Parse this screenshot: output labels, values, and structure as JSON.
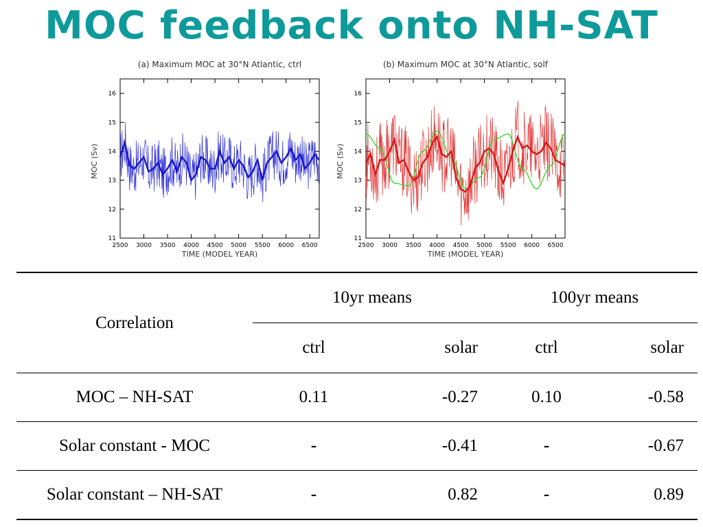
{
  "slide": {
    "title": "MOC feedback onto NH-SAT"
  },
  "chart_data": [
    {
      "type": "line",
      "title": "(a) Maximum MOC at 30°N Atlantic, ctrl",
      "xlabel": "TIME (MODEL YEAR)",
      "ylabel": "MOC (Sv)",
      "xlim": [
        2500,
        6700
      ],
      "ylim": [
        11,
        16.5
      ],
      "xticks": [
        2500,
        3000,
        3500,
        4000,
        4500,
        5000,
        5500,
        6000,
        6500
      ],
      "yticks": [
        11,
        12,
        13,
        14,
        15,
        16
      ],
      "colors": {
        "annual": "#2b2bd6",
        "smooth": "#1515c8"
      },
      "series": [
        {
          "x": [
            2500,
            2600,
            2700,
            2800,
            2900,
            3000,
            3100,
            3200,
            3300,
            3400,
            3500,
            3600,
            3700,
            3800,
            3900,
            4000,
            4100,
            4200,
            4300,
            4400,
            4500,
            4600,
            4700,
            4800,
            4900,
            5000,
            5100,
            5200,
            5300,
            5400,
            5500,
            5600,
            5700,
            5800,
            5900,
            6000,
            6100,
            6200,
            6300,
            6400,
            6500,
            6600,
            6700
          ],
          "values": [
            13.8,
            14.3,
            13.5,
            13.4,
            13.6,
            13.8,
            13.3,
            13.4,
            13.6,
            13.2,
            13.4,
            13.7,
            13.3,
            13.8,
            13.6,
            13.0,
            13.2,
            13.8,
            13.7,
            13.4,
            13.4,
            14.0,
            13.6,
            13.8,
            13.4,
            13.7,
            13.5,
            13.1,
            13.3,
            13.7,
            13.0,
            13.6,
            13.8,
            14.0,
            13.6,
            13.8,
            14.1,
            13.7,
            13.9,
            13.4,
            13.6,
            13.9,
            13.7
          ]
        }
      ]
    },
    {
      "type": "line",
      "title": "(b) Maximum MOC at 30°N Atlantic, solf",
      "xlabel": "TIME (MODEL YEAR)",
      "ylabel": "MOC (Sv)",
      "xlim": [
        2500,
        6700
      ],
      "ylim": [
        11,
        16.5
      ],
      "xticks": [
        2500,
        3000,
        3500,
        4000,
        4500,
        5000,
        5500,
        6000,
        6500
      ],
      "yticks": [
        11,
        12,
        13,
        14,
        15,
        16
      ],
      "colors": {
        "annual": "#e23030",
        "smooth": "#d41616",
        "solar": "#33dd33"
      },
      "series": [
        {
          "x": [
            2500,
            2600,
            2700,
            2800,
            2900,
            3000,
            3100,
            3200,
            3300,
            3400,
            3500,
            3600,
            3700,
            3800,
            3900,
            4000,
            4100,
            4200,
            4300,
            4400,
            4500,
            4600,
            4700,
            4800,
            4900,
            5000,
            5100,
            5200,
            5300,
            5400,
            5500,
            5600,
            5700,
            5800,
            5900,
            6000,
            6100,
            6200,
            6300,
            6400,
            6500,
            6600,
            6700
          ],
          "values": [
            13.6,
            13.9,
            13.2,
            13.7,
            13.7,
            14.0,
            14.4,
            13.6,
            13.7,
            13.3,
            13.0,
            13.1,
            13.6,
            13.8,
            14.3,
            14.5,
            13.9,
            13.8,
            14.0,
            13.1,
            12.7,
            12.6,
            12.8,
            13.4,
            13.6,
            14.0,
            14.1,
            13.9,
            13.3,
            12.9,
            13.4,
            14.0,
            14.5,
            14.1,
            14.2,
            14.0,
            13.9,
            14.0,
            14.3,
            14.1,
            13.7,
            13.6,
            13.5
          ]
        },
        {
          "solar_forcing": {
            "x": [
              2500,
              2800,
              3100,
              3400,
              3700,
              4000,
              4300,
              4600,
              4900,
              5200,
              5500,
              5800,
              6100,
              6400,
              6700
            ],
            "values": [
              14.6,
              14.1,
              12.9,
              12.8,
              14.0,
              14.7,
              13.8,
              12.7,
              13.1,
              14.4,
              14.6,
              13.4,
              12.7,
              13.5,
              14.6
            ]
          }
        }
      ]
    }
  ],
  "table": {
    "corner_label": "Correlation",
    "group_headers": [
      "10yr means",
      "100yr means"
    ],
    "sub_headers": [
      "ctrl",
      "solar",
      "ctrl",
      "solar"
    ],
    "rows": [
      {
        "label": "MOC – NH-SAT",
        "values": [
          "0.11",
          "-0.27",
          "0.10",
          "-0.58"
        ]
      },
      {
        "label": "Solar constant - MOC",
        "values": [
          "-",
          "-0.41",
          "-",
          "-0.67"
        ]
      },
      {
        "label": "Solar constant – NH-SAT",
        "values": [
          "-",
          "0.82",
          "-",
          "0.89"
        ]
      }
    ]
  }
}
